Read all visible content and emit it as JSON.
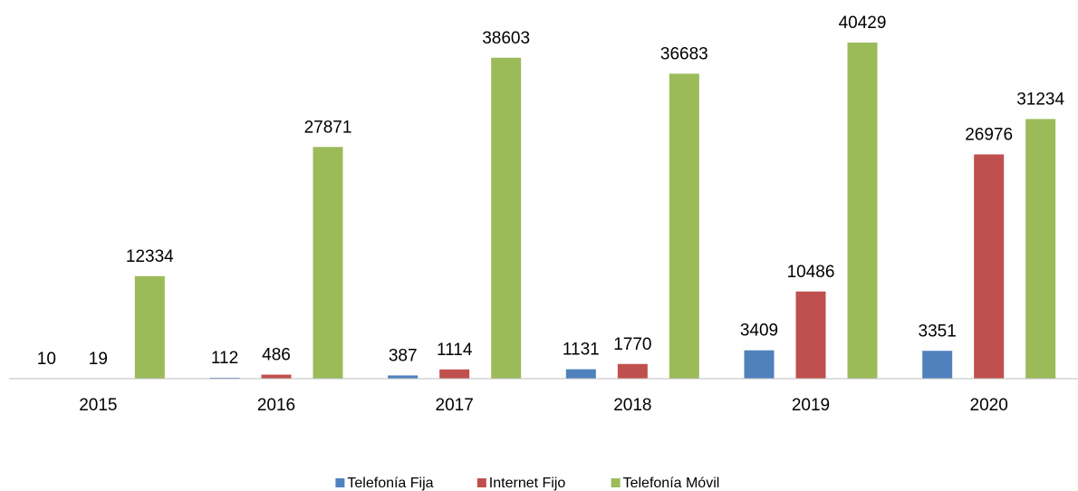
{
  "chart_data": {
    "type": "bar",
    "categories": [
      "2015",
      "2016",
      "2017",
      "2018",
      "2019",
      "2020"
    ],
    "series": [
      {
        "name": "Telefonía Fija",
        "color": "#4f81bd",
        "values": [
          10,
          112,
          387,
          1131,
          3409,
          3351
        ]
      },
      {
        "name": "Internet Fijo",
        "color": "#c0504d",
        "values": [
          19,
          486,
          1114,
          1770,
          10486,
          26976
        ]
      },
      {
        "name": "Telefonía Móvil",
        "color": "#9bbb59",
        "values": [
          12334,
          27871,
          38603,
          36683,
          40429,
          31234
        ]
      }
    ],
    "legend": "bottom"
  }
}
